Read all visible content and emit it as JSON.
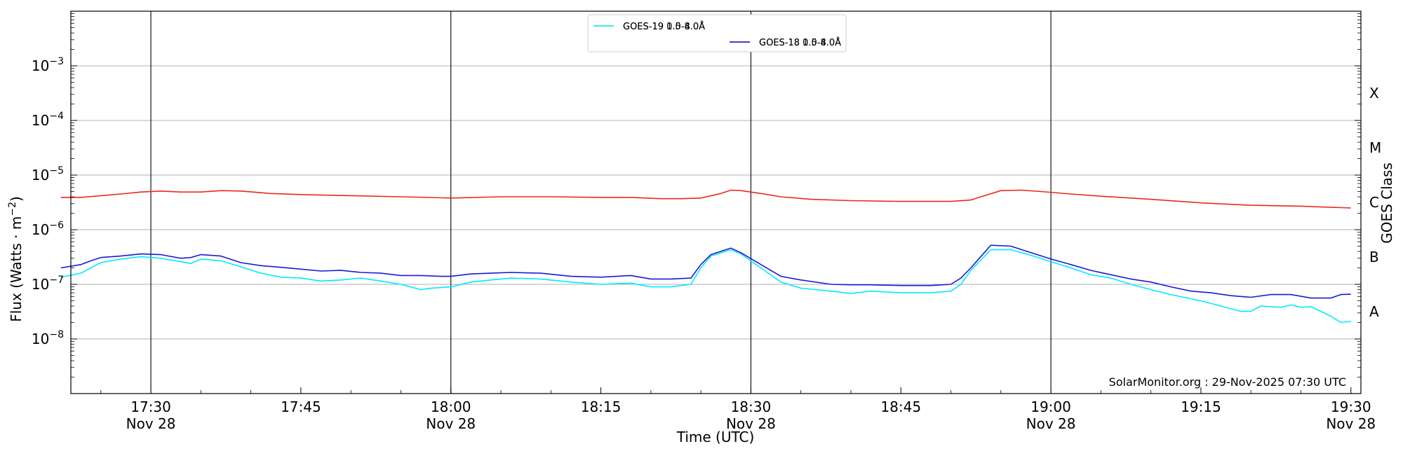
{
  "chart_data": {
    "type": "line",
    "xlabel": "Time (UTC)",
    "ylabel": "Flux (Watts · m",
    "ylabel_sup": "−2",
    "ylabel_close": ")",
    "right_axis_label": "GOES Class",
    "y_scale": "log",
    "ylim": [
      1e-09,
      0.01
    ],
    "xlim": [
      "17:22",
      "19:31"
    ],
    "yticks": [
      {
        "value": 0.001,
        "base": "10",
        "exp": "−3"
      },
      {
        "value": 0.0001,
        "base": "10",
        "exp": "−4"
      },
      {
        "value": 1e-05,
        "base": "10",
        "exp": "−5"
      },
      {
        "value": 1e-06,
        "base": "10",
        "exp": "−6"
      },
      {
        "value": 1e-07,
        "base": "10",
        "exp": "−7"
      },
      {
        "value": 1e-08,
        "base": "10",
        "exp": "−8"
      }
    ],
    "xticks": [
      {
        "time": "17:30",
        "label": "17:30",
        "date": "Nov 28"
      },
      {
        "time": "17:45",
        "label": "17:45",
        "date": ""
      },
      {
        "time": "18:00",
        "label": "18:00",
        "date": "Nov 28"
      },
      {
        "time": "18:15",
        "label": "18:15",
        "date": ""
      },
      {
        "time": "18:30",
        "label": "18:30",
        "date": "Nov 28"
      },
      {
        "time": "18:45",
        "label": "18:45",
        "date": ""
      },
      {
        "time": "19:00",
        "label": "19:00",
        "date": "Nov 28"
      },
      {
        "time": "19:15",
        "label": "19:15",
        "date": ""
      },
      {
        "time": "19:30",
        "label": "19:30",
        "date": "Nov 28"
      }
    ],
    "vlines": [
      "17:30",
      "18:00",
      "18:30",
      "19:00"
    ],
    "grid": "horizontal",
    "classes": [
      {
        "label": "X",
        "value": 0.0001
      },
      {
        "label": "M",
        "value": 1e-05
      },
      {
        "label": "C",
        "value": 1e-06
      },
      {
        "label": "B",
        "value": 1e-07
      },
      {
        "label": "A",
        "value": 1e-08
      }
    ],
    "legend_position": "top-center",
    "annotation": "SolarMonitor.org : 29-Nov-2025 07:30 UTC",
    "series": [
      {
        "name": "GOES-19 1.0-8.0Å",
        "color": "#ffd700",
        "points": []
      },
      {
        "name": "GOES-18 1.0-8.0Å",
        "color": "#e8291c",
        "points": [
          [
            "17:21",
            3.9e-06
          ],
          [
            "17:23",
            3.9e-06
          ],
          [
            "17:25",
            4.2e-06
          ],
          [
            "17:27",
            4.5e-06
          ],
          [
            "17:29",
            4.9e-06
          ],
          [
            "17:31",
            5.1e-06
          ],
          [
            "17:33",
            4.9e-06
          ],
          [
            "17:35",
            4.9e-06
          ],
          [
            "17:37",
            5.2e-06
          ],
          [
            "17:39",
            5.1e-06
          ],
          [
            "17:42",
            4.6e-06
          ],
          [
            "17:45",
            4.4e-06
          ],
          [
            "17:50",
            4.2e-06
          ],
          [
            "17:55",
            4e-06
          ],
          [
            "18:00",
            3.8e-06
          ],
          [
            "18:05",
            4e-06
          ],
          [
            "18:10",
            4e-06
          ],
          [
            "18:15",
            3.9e-06
          ],
          [
            "18:18",
            3.9e-06
          ],
          [
            "18:21",
            3.7e-06
          ],
          [
            "18:23",
            3.7e-06
          ],
          [
            "18:25",
            3.8e-06
          ],
          [
            "18:27",
            4.6e-06
          ],
          [
            "18:28",
            5.3e-06
          ],
          [
            "18:29",
            5.2e-06
          ],
          [
            "18:31",
            4.6e-06
          ],
          [
            "18:33",
            4e-06
          ],
          [
            "18:36",
            3.6e-06
          ],
          [
            "18:40",
            3.4e-06
          ],
          [
            "18:45",
            3.3e-06
          ],
          [
            "18:50",
            3.3e-06
          ],
          [
            "18:52",
            3.5e-06
          ],
          [
            "18:53",
            4e-06
          ],
          [
            "18:55",
            5.2e-06
          ],
          [
            "18:57",
            5.3e-06
          ],
          [
            "18:59",
            5e-06
          ],
          [
            "19:02",
            4.5e-06
          ],
          [
            "19:05",
            4.1e-06
          ],
          [
            "19:10",
            3.6e-06
          ],
          [
            "19:15",
            3.1e-06
          ],
          [
            "19:20",
            2.8e-06
          ],
          [
            "19:25",
            2.7e-06
          ],
          [
            "19:30",
            2.5e-06
          ]
        ]
      },
      {
        "name": "GOES-19 0.5-4.0Å",
        "color": "#00eaff",
        "points": [
          [
            "17:21",
            1.35e-07
          ],
          [
            "17:23",
            1.6e-07
          ],
          [
            "17:24",
            2e-07
          ],
          [
            "17:25",
            2.5e-07
          ],
          [
            "17:27",
            2.9e-07
          ],
          [
            "17:29",
            3.2e-07
          ],
          [
            "17:31",
            3e-07
          ],
          [
            "17:33",
            2.6e-07
          ],
          [
            "17:34",
            2.4e-07
          ],
          [
            "17:35",
            2.9e-07
          ],
          [
            "17:37",
            2.7e-07
          ],
          [
            "17:39",
            2.1e-07
          ],
          [
            "17:41",
            1.6e-07
          ],
          [
            "17:43",
            1.35e-07
          ],
          [
            "17:45",
            1.3e-07
          ],
          [
            "17:47",
            1.15e-07
          ],
          [
            "17:49",
            1.2e-07
          ],
          [
            "17:51",
            1.3e-07
          ],
          [
            "17:53",
            1.15e-07
          ],
          [
            "17:55",
            1e-07
          ],
          [
            "17:57",
            8e-08
          ],
          [
            "17:58",
            8.5e-08
          ],
          [
            "18:00",
            9e-08
          ],
          [
            "18:02",
            1.1e-07
          ],
          [
            "18:04",
            1.2e-07
          ],
          [
            "18:06",
            1.3e-07
          ],
          [
            "18:09",
            1.25e-07
          ],
          [
            "18:12",
            1.1e-07
          ],
          [
            "18:15",
            1e-07
          ],
          [
            "18:18",
            1.05e-07
          ],
          [
            "18:20",
            9e-08
          ],
          [
            "18:22",
            9e-08
          ],
          [
            "18:24",
            1e-07
          ],
          [
            "18:25",
            2e-07
          ],
          [
            "18:26",
            3.3e-07
          ],
          [
            "18:28",
            4.3e-07
          ],
          [
            "18:29",
            3.6e-07
          ],
          [
            "18:31",
            2e-07
          ],
          [
            "18:33",
            1.1e-07
          ],
          [
            "18:35",
            8.5e-08
          ],
          [
            "18:38",
            7.5e-08
          ],
          [
            "18:40",
            6.8e-08
          ],
          [
            "18:42",
            7.5e-08
          ],
          [
            "18:45",
            7e-08
          ],
          [
            "18:48",
            7e-08
          ],
          [
            "18:50",
            7.5e-08
          ],
          [
            "18:51",
            1e-07
          ],
          [
            "18:52",
            1.8e-07
          ],
          [
            "18:54",
            4.3e-07
          ],
          [
            "18:56",
            4.3e-07
          ],
          [
            "18:58",
            3.4e-07
          ],
          [
            "19:00",
            2.6e-07
          ],
          [
            "19:02",
            2e-07
          ],
          [
            "19:04",
            1.5e-07
          ],
          [
            "19:06",
            1.3e-07
          ],
          [
            "19:08",
            1e-07
          ],
          [
            "19:10",
            8e-08
          ],
          [
            "19:12",
            6.5e-08
          ],
          [
            "19:15",
            5e-08
          ],
          [
            "19:17",
            4e-08
          ],
          [
            "19:19",
            3.2e-08
          ],
          [
            "19:20",
            3.2e-08
          ],
          [
            "19:21",
            4e-08
          ],
          [
            "19:23",
            3.8e-08
          ],
          [
            "19:24",
            4.2e-08
          ],
          [
            "19:25",
            3.8e-08
          ],
          [
            "19:26",
            3.9e-08
          ],
          [
            "19:27",
            3.2e-08
          ],
          [
            "19:28",
            2.6e-08
          ],
          [
            "19:29",
            2e-08
          ],
          [
            "19:30",
            2.1e-08
          ]
        ]
      },
      {
        "name": "GOES-18 0.5-4.0Å",
        "color": "#1a1ad6",
        "points": [
          [
            "17:21",
            2e-07
          ],
          [
            "17:23",
            2.3e-07
          ],
          [
            "17:24",
            2.7e-07
          ],
          [
            "17:25",
            3.1e-07
          ],
          [
            "17:27",
            3.3e-07
          ],
          [
            "17:29",
            3.6e-07
          ],
          [
            "17:31",
            3.5e-07
          ],
          [
            "17:33",
            3e-07
          ],
          [
            "17:34",
            3.1e-07
          ],
          [
            "17:35",
            3.5e-07
          ],
          [
            "17:37",
            3.3e-07
          ],
          [
            "17:39",
            2.5e-07
          ],
          [
            "17:41",
            2.2e-07
          ],
          [
            "17:43",
            2.05e-07
          ],
          [
            "17:45",
            1.9e-07
          ],
          [
            "17:47",
            1.75e-07
          ],
          [
            "17:49",
            1.8e-07
          ],
          [
            "17:51",
            1.65e-07
          ],
          [
            "17:53",
            1.6e-07
          ],
          [
            "17:55",
            1.45e-07
          ],
          [
            "17:57",
            1.45e-07
          ],
          [
            "17:59",
            1.4e-07
          ],
          [
            "18:00",
            1.4e-07
          ],
          [
            "18:02",
            1.55e-07
          ],
          [
            "18:04",
            1.6e-07
          ],
          [
            "18:06",
            1.65e-07
          ],
          [
            "18:09",
            1.6e-07
          ],
          [
            "18:12",
            1.4e-07
          ],
          [
            "18:15",
            1.35e-07
          ],
          [
            "18:18",
            1.45e-07
          ],
          [
            "18:20",
            1.25e-07
          ],
          [
            "18:22",
            1.25e-07
          ],
          [
            "18:24",
            1.3e-07
          ],
          [
            "18:25",
            2.3e-07
          ],
          [
            "18:26",
            3.5e-07
          ],
          [
            "18:28",
            4.6e-07
          ],
          [
            "18:29",
            3.8e-07
          ],
          [
            "18:31",
            2.3e-07
          ],
          [
            "18:33",
            1.4e-07
          ],
          [
            "18:35",
            1.2e-07
          ],
          [
            "18:38",
            1e-07
          ],
          [
            "18:40",
            9.8e-08
          ],
          [
            "18:42",
            9.8e-08
          ],
          [
            "18:45",
            9.5e-08
          ],
          [
            "18:48",
            9.5e-08
          ],
          [
            "18:50",
            1e-07
          ],
          [
            "18:51",
            1.3e-07
          ],
          [
            "18:52",
            2e-07
          ],
          [
            "18:54",
            5.2e-07
          ],
          [
            "18:56",
            5e-07
          ],
          [
            "18:58",
            3.8e-07
          ],
          [
            "19:00",
            2.9e-07
          ],
          [
            "19:02",
            2.3e-07
          ],
          [
            "19:04",
            1.8e-07
          ],
          [
            "19:06",
            1.5e-07
          ],
          [
            "19:08",
            1.25e-07
          ],
          [
            "19:10",
            1.1e-07
          ],
          [
            "19:12",
            9e-08
          ],
          [
            "19:14",
            7.5e-08
          ],
          [
            "19:16",
            7e-08
          ],
          [
            "19:18",
            6.2e-08
          ],
          [
            "19:20",
            5.8e-08
          ],
          [
            "19:22",
            6.5e-08
          ],
          [
            "19:24",
            6.5e-08
          ],
          [
            "19:26",
            5.6e-08
          ],
          [
            "19:28",
            5.6e-08
          ],
          [
            "19:29",
            6.5e-08
          ],
          [
            "19:30",
            6.6e-08
          ]
        ]
      }
    ]
  }
}
